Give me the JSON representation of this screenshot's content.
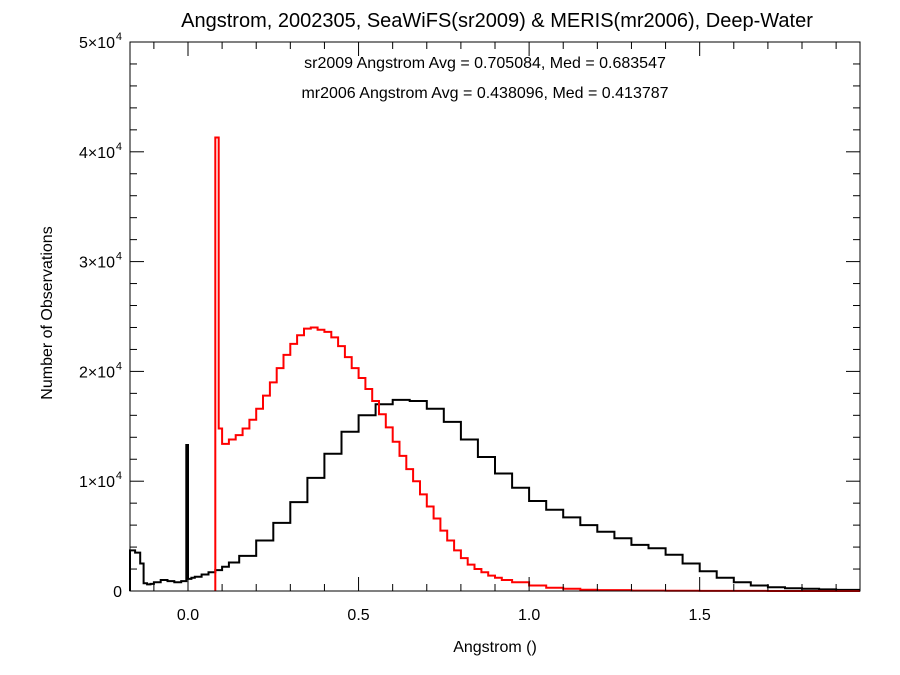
{
  "chart_data": {
    "type": "line",
    "step": true,
    "title": "Angstrom, 2002305, SeaWiFS(sr2009) & MERIS(mr2006), Deep-Water",
    "xlabel": "Angstrom ()",
    "ylabel": "Number of Observations",
    "xlim": [
      -0.17,
      1.97
    ],
    "ylim": [
      0,
      50000
    ],
    "x_ticks": [
      {
        "value": 0.0,
        "label": "0.0"
      },
      {
        "value": 0.5,
        "label": "0.5"
      },
      {
        "value": 1.0,
        "label": "1.0"
      },
      {
        "value": 1.5,
        "label": "1.5"
      }
    ],
    "y_ticks": [
      {
        "value": 0,
        "label": "0",
        "exp": ""
      },
      {
        "value": 10000,
        "label": "1×10",
        "exp": "4"
      },
      {
        "value": 20000,
        "label": "2×10",
        "exp": "4"
      },
      {
        "value": 30000,
        "label": "3×10",
        "exp": "4"
      },
      {
        "value": 40000,
        "label": "4×10",
        "exp": "4"
      },
      {
        "value": 50000,
        "label": "5×10",
        "exp": "4"
      }
    ],
    "annotations": [
      {
        "text": "sr2009 Angstrom Avg = 0.705084, Med = 0.683547",
        "color": "#000000"
      },
      {
        "text": "mr2006 Angstrom Avg = 0.438096, Med = 0.413787",
        "color": "#ff0000"
      }
    ],
    "series": [
      {
        "color": "#000000",
        "x": [
          -0.17,
          -0.155,
          -0.14,
          -0.13,
          -0.12,
          -0.11,
          -0.1,
          -0.08,
          -0.06,
          -0.04,
          -0.02,
          -0.005,
          0.0,
          0.01,
          0.02,
          0.04,
          0.06,
          0.08,
          0.1,
          0.12,
          0.15,
          0.2,
          0.25,
          0.3,
          0.35,
          0.4,
          0.45,
          0.5,
          0.55,
          0.6,
          0.65,
          0.7,
          0.75,
          0.8,
          0.85,
          0.9,
          0.95,
          1.0,
          1.05,
          1.1,
          1.15,
          1.2,
          1.25,
          1.3,
          1.35,
          1.4,
          1.45,
          1.5,
          1.55,
          1.6,
          1.65,
          1.7,
          1.75,
          1.8,
          1.85,
          1.9,
          1.97
        ],
        "y": [
          3700,
          3500,
          2500,
          700,
          600,
          650,
          800,
          1000,
          900,
          800,
          900,
          13300,
          1100,
          1200,
          1300,
          1500,
          1700,
          1900,
          2200,
          2600,
          3200,
          4600,
          6200,
          8100,
          10300,
          12500,
          14500,
          16000,
          17000,
          17400,
          17300,
          16600,
          15400,
          13800,
          12200,
          10700,
          9400,
          8200,
          7400,
          6700,
          6000,
          5400,
          4800,
          4200,
          3900,
          3300,
          2500,
          1800,
          1200,
          800,
          500,
          350,
          250,
          200,
          150,
          100,
          100
        ]
      },
      {
        "color": "#ff0000",
        "x": [
          0.08,
          0.09,
          0.1,
          0.12,
          0.14,
          0.16,
          0.18,
          0.2,
          0.22,
          0.24,
          0.26,
          0.28,
          0.3,
          0.32,
          0.34,
          0.36,
          0.38,
          0.4,
          0.42,
          0.44,
          0.46,
          0.48,
          0.5,
          0.52,
          0.54,
          0.56,
          0.58,
          0.6,
          0.62,
          0.64,
          0.66,
          0.68,
          0.7,
          0.72,
          0.74,
          0.76,
          0.78,
          0.8,
          0.82,
          0.84,
          0.86,
          0.88,
          0.9,
          0.92,
          0.95,
          1.0,
          1.05,
          1.1,
          1.15,
          1.2,
          1.3,
          1.4,
          1.5,
          1.6,
          1.7
        ],
        "y": [
          41300,
          14800,
          13400,
          13800,
          14200,
          14800,
          15600,
          16600,
          17800,
          19000,
          20300,
          21500,
          22500,
          23300,
          23900,
          24000,
          23800,
          23600,
          23100,
          22300,
          21300,
          20300,
          19400,
          18400,
          17300,
          16100,
          14900,
          13600,
          12300,
          11100,
          10000,
          8800,
          7700,
          6600,
          5500,
          4600,
          3700,
          3000,
          2400,
          2000,
          1700,
          1400,
          1200,
          1000,
          800,
          500,
          300,
          200,
          120,
          80,
          40,
          20,
          10,
          5,
          0
        ]
      }
    ]
  }
}
